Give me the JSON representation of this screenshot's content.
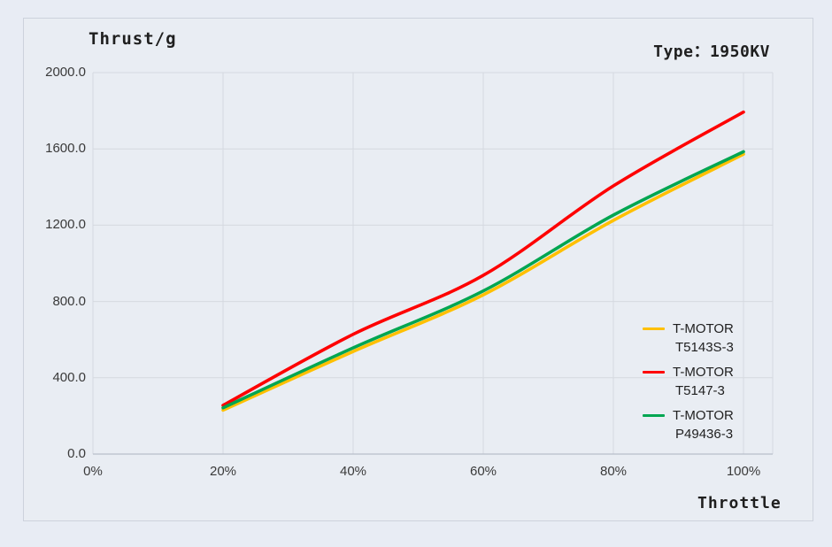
{
  "chart_data": {
    "type": "line",
    "title": "Thrust/g",
    "subtitle": "Type：1950KV",
    "xlabel": "Throttle",
    "ylabel": "Thrust/g",
    "x_tick_labels": [
      "0%",
      "20%",
      "40%",
      "60%",
      "80%",
      "100%"
    ],
    "y_tick_labels": [
      "0.0",
      "400.0",
      "800.0",
      "1200.0",
      "1600.0",
      "2000.0"
    ],
    "x_percent": [
      20,
      40,
      60,
      80,
      100
    ],
    "xlim_percent": [
      0,
      104.5
    ],
    "ylim": [
      0,
      2000
    ],
    "grid": true,
    "legend_position": "right-overlay",
    "colors": {
      "background": "#e8ecf4",
      "frame_border": "#cdd2dc",
      "gridline": "#d5d9e0",
      "axis_line": "#b9bfc9",
      "text": "#1f1f1f"
    },
    "series": [
      {
        "name": "T-MOTOR T5143S-3",
        "label_lines": [
          "T-MOTOR",
          "T5143S-3"
        ],
        "color": "#ffc000",
        "values": [
          230,
          538,
          835,
          1225,
          1572
        ]
      },
      {
        "name": "T-MOTOR T5147-3",
        "label_lines": [
          "T-MOTOR",
          "T5147-3"
        ],
        "color": "#fe0000",
        "values": [
          255,
          628,
          937,
          1406,
          1793
        ]
      },
      {
        "name": "T-MOTOR P49436-3",
        "label_lines": [
          "T-MOTOR",
          "P49436-3"
        ],
        "color": "#00a651",
        "values": [
          242,
          557,
          855,
          1253,
          1585
        ]
      }
    ]
  }
}
